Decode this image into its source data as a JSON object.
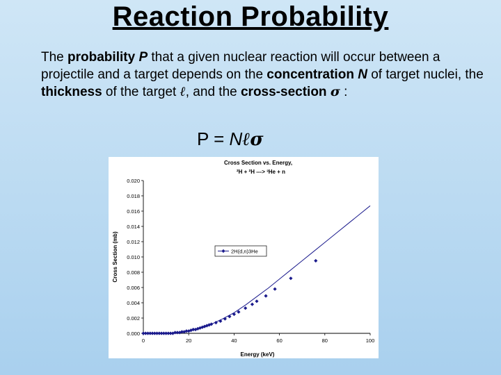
{
  "slide": {
    "title": "Reaction Probability",
    "para": {
      "t1": "The ",
      "b1": "probability ",
      "v1": "P",
      "t2": " that a given nuclear reaction will occur between a projectile and a target depends on the ",
      "b2": "concentration ",
      "v2": "N",
      "t3": " of target nuclei, the ",
      "b3": "thickness",
      "t4": " of the target ",
      "ell": "ℓ",
      "t5": ", and the ",
      "b4": "cross-section ",
      "sigma": "σ",
      "t6": " :"
    },
    "equation": {
      "lhs": "P",
      "eq": "=",
      "n": "N",
      "ell": "ℓ",
      "sigma": "σ"
    }
  },
  "chart_data": {
    "type": "line",
    "title": "Cross Section vs. Energy,",
    "subtitle": "²H + ²H ---> ³He + n",
    "xlabel": "Energy (keV)",
    "ylabel": "Cross Section (mb)",
    "xlim": [
      0,
      100
    ],
    "ylim": [
      0,
      0.02
    ],
    "x_ticks": [
      "0",
      "20",
      "40",
      "60",
      "80",
      "100"
    ],
    "y_ticks": [
      "0.000",
      "0.002",
      "0.004",
      "0.006",
      "0.008",
      "0.010",
      "0.012",
      "0.014",
      "0.016",
      "0.018",
      "0.020"
    ],
    "legend_position": "center-left",
    "line_color": "#1a1a8c",
    "series": [
      {
        "name": "2H(d,n)3He",
        "line": [
          [
            0,
            0
          ],
          [
            5,
            0
          ],
          [
            10,
            0
          ],
          [
            15,
            0.0001
          ],
          [
            20,
            0.0003
          ],
          [
            25,
            0.0007
          ],
          [
            30,
            0.0012
          ],
          [
            35,
            0.0019
          ],
          [
            40,
            0.0027
          ],
          [
            45,
            0.0037
          ],
          [
            50,
            0.0048
          ],
          [
            55,
            0.0059
          ],
          [
            60,
            0.0071
          ],
          [
            65,
            0.0083
          ],
          [
            70,
            0.0095
          ],
          [
            75,
            0.0107
          ],
          [
            80,
            0.0119
          ],
          [
            85,
            0.0131
          ],
          [
            90,
            0.0143
          ],
          [
            95,
            0.0155
          ],
          [
            100,
            0.0167
          ]
        ],
        "points": [
          [
            0,
            0
          ],
          [
            1,
            0
          ],
          [
            2,
            0
          ],
          [
            3,
            0
          ],
          [
            4,
            0
          ],
          [
            5,
            0
          ],
          [
            6,
            0
          ],
          [
            7,
            0
          ],
          [
            8,
            0
          ],
          [
            9,
            0
          ],
          [
            10,
            0
          ],
          [
            11,
            0
          ],
          [
            12,
            0
          ],
          [
            13,
            0
          ],
          [
            14,
            0.0001
          ],
          [
            15,
            0.0001
          ],
          [
            16,
            0.0001
          ],
          [
            17,
            0.0002
          ],
          [
            18,
            0.0002
          ],
          [
            19,
            0.0003
          ],
          [
            20,
            0.0003
          ],
          [
            21,
            0.0004
          ],
          [
            22,
            0.0005
          ],
          [
            23,
            0.0005
          ],
          [
            24,
            0.0006
          ],
          [
            25,
            0.0007
          ],
          [
            26,
            0.0008
          ],
          [
            27,
            0.0009
          ],
          [
            28,
            0.001
          ],
          [
            29,
            0.0011
          ],
          [
            30,
            0.0012
          ],
          [
            32,
            0.0014
          ],
          [
            34,
            0.0016
          ],
          [
            36,
            0.0019
          ],
          [
            38,
            0.0022
          ],
          [
            40,
            0.0025
          ],
          [
            42,
            0.0028
          ],
          [
            45,
            0.0033
          ],
          [
            48,
            0.0038
          ],
          [
            50,
            0.0042
          ],
          [
            54,
            0.0049
          ],
          [
            58,
            0.0058
          ],
          [
            65,
            0.0072
          ],
          [
            76,
            0.0095
          ]
        ]
      }
    ]
  }
}
